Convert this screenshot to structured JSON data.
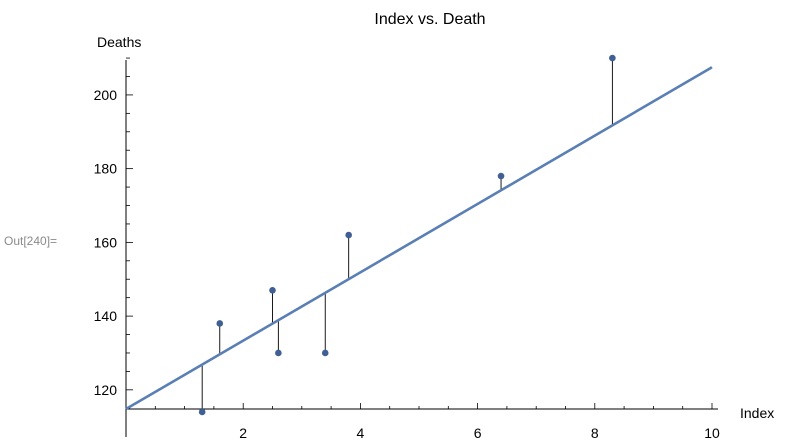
{
  "cell_label": "Out[240]=",
  "chart_data": {
    "type": "scatter",
    "title": "Index vs. Death",
    "xlabel": "Index",
    "ylabel": "Deaths",
    "xlim": [
      0,
      10
    ],
    "ylim": [
      114.8,
      213
    ],
    "x_ticks": [
      2,
      4,
      6,
      8,
      10
    ],
    "y_ticks": [
      120,
      140,
      160,
      180,
      200
    ],
    "grid": false,
    "points": [
      {
        "x": 1.3,
        "y": 114
      },
      {
        "x": 1.6,
        "y": 138
      },
      {
        "x": 2.5,
        "y": 147
      },
      {
        "x": 2.6,
        "y": 130
      },
      {
        "x": 3.4,
        "y": 130
      },
      {
        "x": 3.8,
        "y": 162
      },
      {
        "x": 6.4,
        "y": 178
      },
      {
        "x": 8.3,
        "y": 210
      }
    ],
    "fit_line": {
      "intercept": 114.8,
      "slope": 9.27
    },
    "residual_lines": true,
    "colors": {
      "points": "#3f5f95",
      "fit": "#5a7fb5",
      "residual": "#000000",
      "axis": "#000000"
    }
  }
}
